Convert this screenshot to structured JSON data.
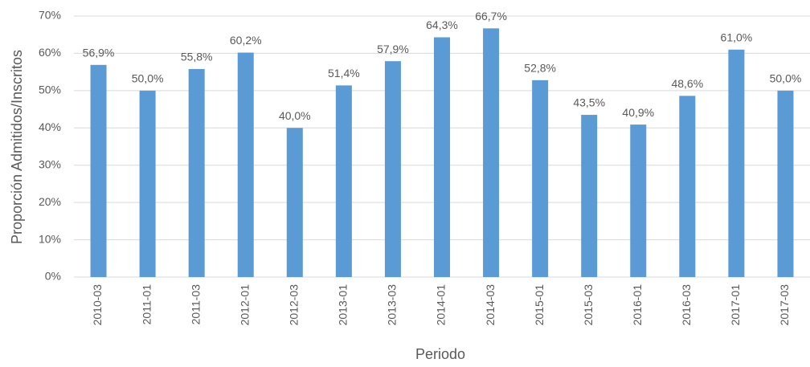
{
  "chart_data": {
    "type": "bar",
    "x_label": "Periodo",
    "y_label": "Proporción Admitidos/Inscritos",
    "categories": [
      "2010-03",
      "2011-01",
      "2011-03",
      "2012-01",
      "2012-03",
      "2013-01",
      "2013-03",
      "2014-01",
      "2014-03",
      "2015-01",
      "2015-03",
      "2016-01",
      "2016-03",
      "2017-01",
      "2017-03"
    ],
    "values": [
      56.9,
      50.0,
      55.8,
      60.2,
      40.0,
      51.4,
      57.9,
      64.3,
      66.7,
      52.8,
      43.5,
      40.9,
      48.6,
      61.0,
      50.0
    ],
    "value_labels": [
      "56,9%",
      "50,0%",
      "55,8%",
      "60,2%",
      "40,0%",
      "51,4%",
      "57,9%",
      "64,3%",
      "66,7%",
      "52,8%",
      "43,5%",
      "40,9%",
      "48,6%",
      "61,0%",
      "50,0%"
    ],
    "color": "#5b9bd5",
    "ylim": [
      0,
      70
    ],
    "yticks": [
      {
        "value": 0,
        "label": "0%"
      },
      {
        "value": 10,
        "label": "10%"
      },
      {
        "value": 20,
        "label": "20%"
      },
      {
        "value": 30,
        "label": "30%"
      },
      {
        "value": 40,
        "label": "40%"
      },
      {
        "value": 50,
        "label": "50%"
      },
      {
        "value": 60,
        "label": "60%"
      },
      {
        "value": 70,
        "label": "70%"
      }
    ],
    "grid": true
  }
}
